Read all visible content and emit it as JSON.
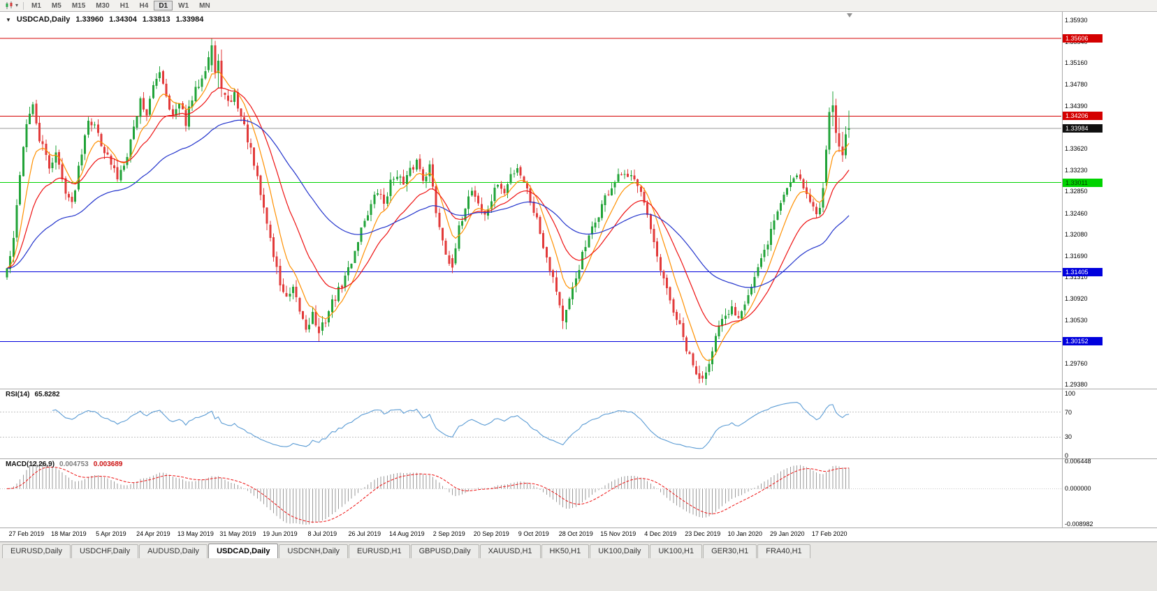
{
  "toolbar": {
    "chart_type_icon": "candlestick-chart-icon",
    "dropdown_caret_icon": "dropdown-caret",
    "timeframes": [
      {
        "label": "M1",
        "active": false
      },
      {
        "label": "M5",
        "active": false
      },
      {
        "label": "M15",
        "active": false
      },
      {
        "label": "M30",
        "active": false
      },
      {
        "label": "H1",
        "active": false
      },
      {
        "label": "H4",
        "active": false
      },
      {
        "label": "D1",
        "active": true
      },
      {
        "label": "W1",
        "active": false
      },
      {
        "label": "MN",
        "active": false
      }
    ]
  },
  "chart": {
    "title": {
      "symbol": "USDCAD,Daily",
      "open": "1.33960",
      "high": "1.34304",
      "low": "1.33813",
      "close": "1.33984"
    },
    "symbol_dropdown_icon": "down-triangle"
  },
  "chart_data": {
    "type": "candlestick",
    "symbol": "USDCAD",
    "timeframe": "Daily",
    "num_candles": 260,
    "y_axis_labels": [
      "1.35930",
      "1.35540",
      "1.35160",
      "1.34780",
      "1.34390",
      "1.34000",
      "1.33620",
      "1.33230",
      "1.32850",
      "1.32460",
      "1.32080",
      "1.31690",
      "1.31310",
      "1.30920",
      "1.30530",
      "1.30140",
      "1.29760",
      "1.29380"
    ],
    "x_axis_labels": [
      "27 Feb 2019",
      "18 Mar 2019",
      "5 Apr 2019",
      "24 Apr 2019",
      "13 May 2019",
      "31 May 2019",
      "19 Jun 2019",
      "8 Jul 2019",
      "26 Jul 2019",
      "14 Aug 2019",
      "2 Sep 2019",
      "20 Sep 2019",
      "9 Oct 2019",
      "28 Oct 2019",
      "15 Nov 2019",
      "4 Dec 2019",
      "23 Dec 2019",
      "10 Jan 2020",
      "29 Jan 2020",
      "17 Feb 2020"
    ],
    "bars_per_label": 13,
    "first_label_bar": 6,
    "price_range_top": 1.3608,
    "price_range_bottom": 1.2932,
    "colors": {
      "up": "#21a338",
      "down": "#e23a3a",
      "background": "#ffffff",
      "axis_text": "#000000"
    },
    "horizontal_lines": [
      {
        "price": 1.35606,
        "label": "1.35606",
        "color": "#d40000",
        "badge_bg": "#d40000",
        "badge_fg": "#ffffff",
        "name": "resistance-line-upper"
      },
      {
        "price": 1.34206,
        "label": "1.34206",
        "color": "#d40000",
        "badge_bg": "#d40000",
        "badge_fg": "#ffffff",
        "name": "resistance-line-lower"
      },
      {
        "price": 1.33011,
        "label": "1.33011",
        "color": "#00d300",
        "badge_bg": "#00d300",
        "badge_fg": "#003f00",
        "name": "support-line-green"
      },
      {
        "price": 1.31405,
        "label": "1.31405",
        "color": "#0000dd",
        "badge_bg": "#0000dd",
        "badge_fg": "#ffffff",
        "name": "support-line-blue-upper"
      },
      {
        "price": 1.30152,
        "label": "1.30152",
        "color": "#0000dd",
        "badge_bg": "#0000dd",
        "badge_fg": "#ffffff",
        "name": "support-line-blue-lower"
      }
    ],
    "current_price": {
      "price": 1.33984,
      "label": "1.33984",
      "line_color": "#9a9a9a",
      "badge_bg": "#101010",
      "badge_fg": "#ffffff"
    },
    "moving_averages": [
      {
        "type": "ema",
        "period": 8,
        "color": "#ff9000"
      },
      {
        "type": "ema",
        "period": 20,
        "color": "#ee1111"
      },
      {
        "type": "ema",
        "period": 55,
        "color": "#2233cc"
      }
    ],
    "close_anchors": [
      [
        0,
        1.3145
      ],
      [
        2,
        1.3195
      ],
      [
        4,
        1.332
      ],
      [
        6,
        1.341
      ],
      [
        8,
        1.3435
      ],
      [
        10,
        1.338
      ],
      [
        13,
        1.333
      ],
      [
        15,
        1.3355
      ],
      [
        17,
        1.3305
      ],
      [
        20,
        1.326
      ],
      [
        22,
        1.333
      ],
      [
        25,
        1.342
      ],
      [
        28,
        1.339
      ],
      [
        31,
        1.3345
      ],
      [
        34,
        1.331
      ],
      [
        37,
        1.3355
      ],
      [
        39,
        1.34
      ],
      [
        41,
        1.345
      ],
      [
        43,
        1.3425
      ],
      [
        45,
        1.347
      ],
      [
        47,
        1.3505
      ],
      [
        49,
        1.346
      ],
      [
        51,
        1.342
      ],
      [
        53,
        1.344
      ],
      [
        55,
        1.341
      ],
      [
        57,
        1.345
      ],
      [
        59,
        1.348
      ],
      [
        61,
        1.351
      ],
      [
        63,
        1.3548
      ],
      [
        64,
        1.3498
      ],
      [
        66,
        1.347
      ],
      [
        68,
        1.344
      ],
      [
        70,
        1.346
      ],
      [
        72,
        1.342
      ],
      [
        74,
        1.338
      ],
      [
        76,
        1.333
      ],
      [
        78,
        1.328
      ],
      [
        80,
        1.323
      ],
      [
        82,
        1.317
      ],
      [
        84,
        1.312
      ],
      [
        86,
        1.309
      ],
      [
        88,
        1.3105
      ],
      [
        90,
        1.307
      ],
      [
        92,
        1.304
      ],
      [
        94,
        1.3065
      ],
      [
        96,
        1.303
      ],
      [
        98,
        1.3055
      ],
      [
        100,
        1.3085
      ],
      [
        102,
        1.3105
      ],
      [
        104,
        1.313
      ],
      [
        106,
        1.316
      ],
      [
        108,
        1.32
      ],
      [
        110,
        1.3235
      ],
      [
        112,
        1.326
      ],
      [
        114,
        1.3285
      ],
      [
        116,
        1.3265
      ],
      [
        118,
        1.33
      ],
      [
        120,
        1.332
      ],
      [
        122,
        1.3295
      ],
      [
        124,
        1.332
      ],
      [
        126,
        1.334
      ],
      [
        128,
        1.331
      ],
      [
        130,
        1.333
      ],
      [
        132,
        1.325
      ],
      [
        134,
        1.32
      ],
      [
        136,
        1.316
      ],
      [
        137,
        1.3148
      ],
      [
        139,
        1.3215
      ],
      [
        141,
        1.326
      ],
      [
        143,
        1.329
      ],
      [
        145,
        1.3265
      ],
      [
        147,
        1.324
      ],
      [
        149,
        1.327
      ],
      [
        151,
        1.33
      ],
      [
        153,
        1.328
      ],
      [
        155,
        1.3315
      ],
      [
        157,
        1.333
      ],
      [
        159,
        1.3305
      ],
      [
        161,
        1.327
      ],
      [
        163,
        1.3235
      ],
      [
        165,
        1.319
      ],
      [
        167,
        1.315
      ],
      [
        169,
        1.311
      ],
      [
        171,
        1.3052
      ],
      [
        173,
        1.3085
      ],
      [
        175,
        1.313
      ],
      [
        177,
        1.317
      ],
      [
        179,
        1.32
      ],
      [
        181,
        1.323
      ],
      [
        183,
        1.326
      ],
      [
        185,
        1.3285
      ],
      [
        187,
        1.33
      ],
      [
        189,
        1.3315
      ],
      [
        191,
        1.3305
      ],
      [
        193,
        1.3315
      ],
      [
        195,
        1.329
      ],
      [
        197,
        1.324
      ],
      [
        199,
        1.3185
      ],
      [
        201,
        1.314
      ],
      [
        203,
        1.3105
      ],
      [
        205,
        1.307
      ],
      [
        207,
        1.304
      ],
      [
        209,
        1.3
      ],
      [
        211,
        1.297
      ],
      [
        213,
        1.2948
      ],
      [
        215,
        1.2962
      ],
      [
        217,
        1.3005
      ],
      [
        219,
        1.304
      ],
      [
        221,
        1.3055
      ],
      [
        223,
        1.3075
      ],
      [
        225,
        1.3062
      ],
      [
        227,
        1.309
      ],
      [
        229,
        1.3115
      ],
      [
        231,
        1.3145
      ],
      [
        233,
        1.3175
      ],
      [
        235,
        1.3215
      ],
      [
        237,
        1.325
      ],
      [
        239,
        1.328
      ],
      [
        241,
        1.3305
      ],
      [
        243,
        1.332
      ],
      [
        245,
        1.3295
      ],
      [
        247,
        1.3265
      ],
      [
        249,
        1.3245
      ],
      [
        250,
        1.3262
      ],
      [
        251,
        1.33
      ],
      [
        252,
        1.336
      ],
      [
        253,
        1.3428
      ],
      [
        254,
        1.344
      ],
      [
        255,
        1.339
      ],
      [
        256,
        1.3366
      ],
      [
        257,
        1.335
      ],
      [
        258,
        1.3388
      ],
      [
        259,
        1.33984
      ]
    ],
    "forced_candles": {
      "63": {
        "o": 1.3512,
        "h": 1.356,
        "l": 1.35,
        "c": 1.3548
      },
      "64": {
        "o": 1.3548,
        "h": 1.3556,
        "l": 1.3488,
        "c": 1.3498
      },
      "65": {
        "o": 1.3498,
        "h": 1.3532,
        "l": 1.347,
        "c": 1.352
      },
      "66": {
        "o": 1.352,
        "h": 1.354,
        "l": 1.3455,
        "c": 1.347
      },
      "96": {
        "o": 1.3042,
        "h": 1.3058,
        "l": 1.3016,
        "c": 1.303
      },
      "137": {
        "o": 1.3165,
        "h": 1.3172,
        "l": 1.3138,
        "c": 1.3148
      },
      "171": {
        "o": 1.308,
        "h": 1.3092,
        "l": 1.3038,
        "c": 1.3052
      },
      "213": {
        "o": 1.2958,
        "h": 1.2972,
        "l": 1.294,
        "c": 1.2948
      },
      "252": {
        "o": 1.3302,
        "h": 1.3368,
        "l": 1.3295,
        "c": 1.336
      },
      "253": {
        "o": 1.336,
        "h": 1.3436,
        "l": 1.3352,
        "c": 1.3428
      },
      "254": {
        "o": 1.3428,
        "h": 1.3465,
        "l": 1.3402,
        "c": 1.344
      },
      "255": {
        "o": 1.344,
        "h": 1.3452,
        "l": 1.3372,
        "c": 1.339
      },
      "256": {
        "o": 1.339,
        "h": 1.3418,
        "l": 1.3356,
        "c": 1.3366
      },
      "257": {
        "o": 1.3366,
        "h": 1.3392,
        "l": 1.3338,
        "c": 1.335
      },
      "258": {
        "o": 1.335,
        "h": 1.3402,
        "l": 1.3344,
        "c": 1.3388
      },
      "259": {
        "o": 1.3396,
        "h": 1.34304,
        "l": 1.33813,
        "c": 1.33984
      }
    },
    "noise_seed": 42,
    "indicators": {
      "rsi": {
        "label": "RSI(14)",
        "value": "65.8282",
        "period": 14,
        "axis_labels": [
          "100",
          "70",
          "30",
          "0"
        ],
        "levels": [
          70,
          30
        ],
        "color": "#5a9bd4"
      },
      "macd": {
        "label": "MACD(12,26,9)",
        "value_main": "0.004753",
        "value_signal": "0.003689",
        "fast": 12,
        "slow": 26,
        "signal_period": 9,
        "axis_top_label": "0.006448",
        "axis_zero_label": "0.000000",
        "axis_bottom_label": "-0.008982",
        "histogram_color": "#9a9a9a",
        "signal_color": "#ee1111"
      }
    }
  },
  "tabs": [
    {
      "label": "EURUSD,Daily",
      "active": false
    },
    {
      "label": "USDCHF,Daily",
      "active": false
    },
    {
      "label": "AUDUSD,Daily",
      "active": false
    },
    {
      "label": "USDCAD,Daily",
      "active": true
    },
    {
      "label": "USDCNH,Daily",
      "active": false
    },
    {
      "label": "EURUSD,H1",
      "active": false
    },
    {
      "label": "GBPUSD,Daily",
      "active": false
    },
    {
      "label": "XAUUSD,H1",
      "active": false
    },
    {
      "label": "HK50,H1",
      "active": false
    },
    {
      "label": "UK100,Daily",
      "active": false
    },
    {
      "label": "UK100,H1",
      "active": false
    },
    {
      "label": "GER30,H1",
      "active": false
    },
    {
      "label": "FRA40,H1",
      "active": false
    }
  ]
}
